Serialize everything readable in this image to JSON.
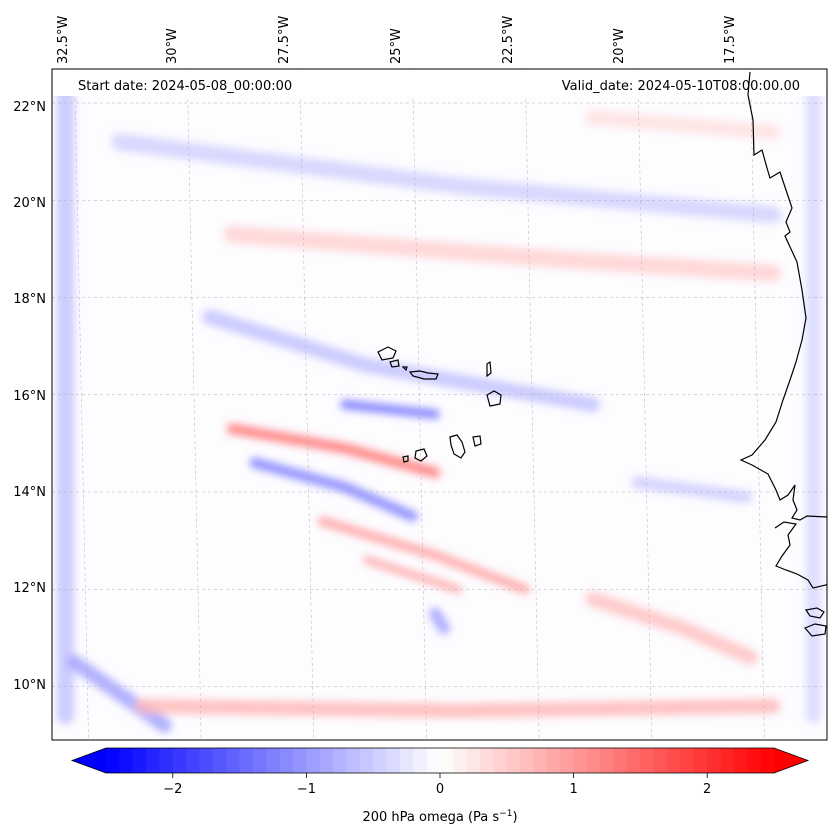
{
  "chart_data": {
    "type": "heatmap",
    "title": "",
    "start_date": "Start date: 2024-05-08_00:00:00",
    "valid_date": "Valid_date: 2024-05-10T08:00:00.00",
    "lon_ticks": [
      "32.5°W",
      "30°W",
      "27.5°W",
      "25°W",
      "22.5°W",
      "20°W",
      "17.5°W"
    ],
    "lon_values": [
      -32.5,
      -30,
      -27.5,
      -25,
      -22.5,
      -20,
      -17.5
    ],
    "lat_ticks": [
      "22°N",
      "20°N",
      "18°N",
      "16°N",
      "14°N",
      "12°N",
      "10°N"
    ],
    "lat_values": [
      22,
      20,
      18,
      16,
      14,
      12,
      10
    ],
    "xlim": [
      -33.0,
      -15.8
    ],
    "ylim": [
      8.9,
      22.7
    ],
    "colorbar": {
      "label": "200 hPa omega (Pa s",
      "label_sup": "−1",
      "label_end": ")",
      "ticks": [
        "−2",
        "−1",
        "0",
        "1",
        "2"
      ],
      "tick_values": [
        -2,
        -1,
        0,
        1,
        2
      ],
      "vmin": -2.5,
      "vmax": 2.5,
      "extend": "both",
      "cmap": "bwr"
    },
    "features": [
      {
        "name": "band-negative-north",
        "lon": [
          -31.5,
          -24,
          -17
        ],
        "lat": [
          21.2,
          20.3,
          19.7
        ],
        "value": -0.45,
        "width": 0.35
      },
      {
        "name": "band-positive-north",
        "lon": [
          -29,
          -22,
          -17
        ],
        "lat": [
          19.3,
          18.8,
          18.5
        ],
        "value": 0.45,
        "width": 0.35
      },
      {
        "name": "band-negative-mid",
        "lon": [
          -29.5,
          -26,
          -21
        ],
        "lat": [
          17.6,
          16.6,
          15.8
        ],
        "value": -0.6,
        "width": 0.3
      },
      {
        "name": "band-positive-south",
        "lon": [
          -29,
          -26.5,
          -24.5
        ],
        "lat": [
          15.3,
          14.9,
          14.4
        ],
        "value": 1.3,
        "width": 0.22
      },
      {
        "name": "band-negative-south",
        "lon": [
          -28.5,
          -26.5,
          -25
        ],
        "lat": [
          14.6,
          14.1,
          13.5
        ],
        "value": -1.2,
        "width": 0.22
      },
      {
        "name": "band-negative-cv",
        "lon": [
          -26.5,
          -24.5
        ],
        "lat": [
          15.8,
          15.6
        ],
        "value": -1.3,
        "width": 0.2
      },
      {
        "name": "band-positive-lower",
        "lon": [
          -27,
          -24.5,
          -22.5
        ],
        "lat": [
          13.4,
          12.7,
          12.0
        ],
        "value": 0.9,
        "width": 0.2
      },
      {
        "name": "band-positive-lower2",
        "lon": [
          -26,
          -24
        ],
        "lat": [
          12.6,
          12.0
        ],
        "value": 0.8,
        "width": 0.18
      },
      {
        "name": "edge-negative-west",
        "lon": [
          -32.7,
          -32.7
        ],
        "lat": [
          22.4,
          9.4
        ],
        "value": -0.6,
        "width": 0.35
      },
      {
        "name": "edge-negative-east",
        "lon": [
          -16.1,
          -16.1
        ],
        "lat": [
          22.4,
          9.4
        ],
        "value": -0.4,
        "width": 0.3
      },
      {
        "name": "edge-negative-sw",
        "lon": [
          -32.5,
          -30.5
        ],
        "lat": [
          10.5,
          9.2
        ],
        "value": -0.9,
        "width": 0.3
      },
      {
        "name": "band-positive-bottom",
        "lon": [
          -31,
          -24,
          -17
        ],
        "lat": [
          9.6,
          9.5,
          9.6
        ],
        "value": 0.7,
        "width": 0.3
      },
      {
        "name": "blob-negative-24w",
        "lon": [
          -24.5,
          -24.3
        ],
        "lat": [
          11.5,
          11.2
        ],
        "value": -0.9,
        "width": 0.25
      },
      {
        "name": "band-positive-se",
        "lon": [
          -21,
          -19,
          -17.5
        ],
        "lat": [
          11.8,
          11.2,
          10.6
        ],
        "value": 0.6,
        "width": 0.3
      },
      {
        "name": "band-negative-east-14n",
        "lon": [
          -20,
          -17.6
        ],
        "lat": [
          14.2,
          13.9
        ],
        "value": -0.5,
        "width": 0.25
      },
      {
        "name": "band-positive-ne",
        "lon": [
          -21,
          -17
        ],
        "lat": [
          21.7,
          21.4
        ],
        "value": 0.3,
        "width": 0.3
      }
    ],
    "annotations": {
      "islands": "Cape Verde Islands",
      "coast": "West African coastline"
    }
  },
  "colors": {
    "negative": "#0000ff",
    "zero": "#ffffff",
    "positive": "#ff0000",
    "coast": "#000000",
    "grid": "#b0b0b0"
  }
}
